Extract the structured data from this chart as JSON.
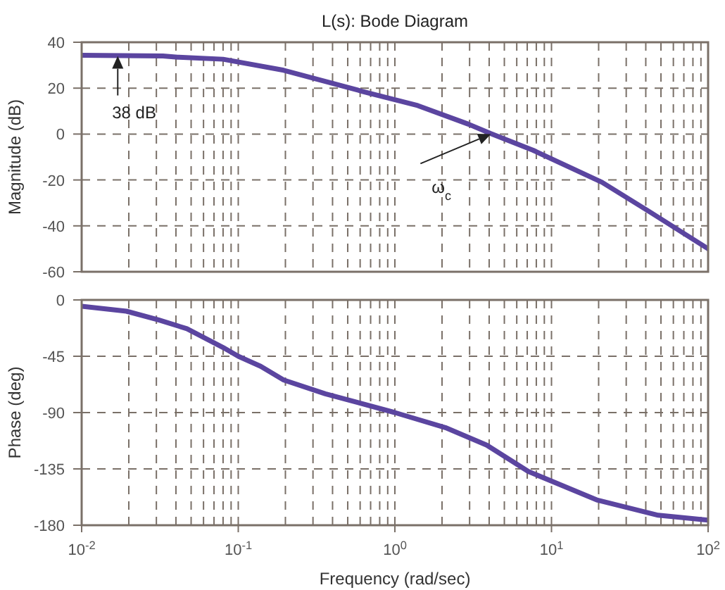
{
  "chart_data": [
    {
      "type": "line",
      "title": "L(s): Bode Diagram",
      "ylabel": "Magnitude (dB)",
      "log": "x",
      "grid": true,
      "tick_labels": "y",
      "marker": "none",
      "line_style": "solid",
      "xlim": [
        0.01,
        100
      ],
      "xticks": [
        0.01,
        0.1,
        1,
        10,
        100
      ],
      "ylim": [
        -60,
        40
      ],
      "yticks": [
        -60,
        -40,
        -20,
        0,
        20,
        40
      ],
      "x": [
        0.01,
        0.033,
        0.041,
        0.08,
        0.195,
        0.62,
        1.4,
        2.95,
        4.1,
        7.6,
        21,
        41.5,
        100
      ],
      "series": [
        {
          "color": "#5b45a0",
          "values": [
            34.3,
            34,
            33.5,
            32.6,
            27.8,
            18.6,
            12.4,
            4.3,
            0.2,
            -7,
            -21,
            -33.5,
            -50
          ]
        }
      ],
      "annotations": [
        {
          "text": "38 dB",
          "x": 0.017,
          "y": 34
        },
        {
          "text": "ω$_{c}$",
          "x": 4.1,
          "y": 0
        }
      ]
    },
    {
      "type": "line",
      "ylabel": "Phase (deg)",
      "xlabel": "Frequency (rad/sec)",
      "log": "x",
      "grid": true,
      "marker": "none",
      "line_style": "solid",
      "xlim": [
        0.01,
        100
      ],
      "xticks": [
        {
          "value": 0.01,
          "label": "10$^{-2}$"
        },
        {
          "value": 0.1,
          "label": "10$^{-1}$"
        },
        {
          "value": 1,
          "label": "10$^{0}$"
        },
        {
          "value": 10,
          "label": "10$^{1}$"
        },
        {
          "value": 100,
          "label": "10$^{2}$"
        }
      ],
      "ylim": [
        -180,
        0
      ],
      "yticks": [
        -180,
        -135,
        -90,
        -45,
        0
      ],
      "x": [
        0.01,
        0.0193,
        0.031,
        0.047,
        0.08,
        0.1,
        0.139,
        0.195,
        0.36,
        1,
        2.1,
        3.86,
        7.1,
        19.7,
        48,
        100
      ],
      "series": [
        {
          "color": "#5b45a0",
          "values": [
            -5,
            -9,
            -16,
            -23,
            -38,
            -45,
            -53,
            -64,
            -75,
            -90,
            -102,
            -116,
            -137,
            -160,
            -172,
            -176
          ]
        }
      ]
    }
  ]
}
